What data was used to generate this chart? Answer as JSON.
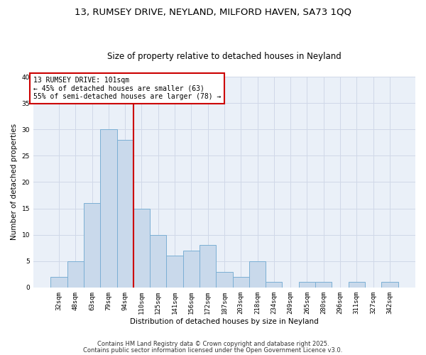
{
  "title1": "13, RUMSEY DRIVE, NEYLAND, MILFORD HAVEN, SA73 1QQ",
  "title2": "Size of property relative to detached houses in Neyland",
  "xlabel": "Distribution of detached houses by size in Neyland",
  "ylabel": "Number of detached properties",
  "bar_labels": [
    "32sqm",
    "48sqm",
    "63sqm",
    "79sqm",
    "94sqm",
    "110sqm",
    "125sqm",
    "141sqm",
    "156sqm",
    "172sqm",
    "187sqm",
    "203sqm",
    "218sqm",
    "234sqm",
    "249sqm",
    "265sqm",
    "280sqm",
    "296sqm",
    "311sqm",
    "327sqm",
    "342sqm"
  ],
  "bar_values": [
    2,
    5,
    16,
    30,
    28,
    15,
    10,
    6,
    7,
    8,
    3,
    2,
    5,
    1,
    0,
    1,
    1,
    0,
    1,
    0,
    1
  ],
  "bar_color": "#c9d9eb",
  "bar_edgecolor": "#7bafd4",
  "vline_x": 4.5,
  "vline_color": "#cc0000",
  "annotation_text": "13 RUMSEY DRIVE: 101sqm\n← 45% of detached houses are smaller (63)\n55% of semi-detached houses are larger (78) →",
  "annotation_box_color": "white",
  "annotation_box_edgecolor": "#cc0000",
  "ylim": [
    0,
    40
  ],
  "yticks": [
    0,
    5,
    10,
    15,
    20,
    25,
    30,
    35,
    40
  ],
  "grid_color": "#d0d8e8",
  "bg_color": "#eaf0f8",
  "footnote1": "Contains HM Land Registry data © Crown copyright and database right 2025.",
  "footnote2": "Contains public sector information licensed under the Open Government Licence v3.0.",
  "title_fontsize": 9.5,
  "subtitle_fontsize": 8.5,
  "annot_fontsize": 7.0,
  "axis_fontsize": 7.5,
  "tick_fontsize": 6.5,
  "footnote_fontsize": 6.0
}
